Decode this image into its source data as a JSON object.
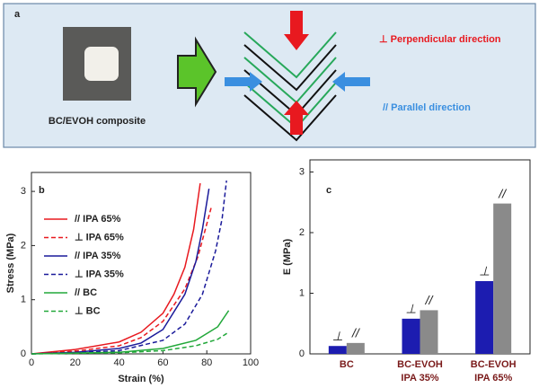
{
  "panel_a": {
    "label": "a",
    "caption": "BC/EVOH composite",
    "perpendicular": "⊥ Perpendicular direction",
    "parallel": "// Parallel direction"
  },
  "chart_data": [
    {
      "type": "line",
      "panel_label": "b",
      "x_label": "Strain (%)",
      "y_label": "Stress (MPa)",
      "xlim": [
        0,
        100
      ],
      "xticks": [
        0,
        20,
        40,
        60,
        80,
        100
      ],
      "ylim": [
        0,
        3.35
      ],
      "yticks": [
        0,
        1,
        2,
        3
      ],
      "series": [
        {
          "name": "// IPA 65%",
          "color": "#e8191f",
          "dashed": false,
          "x": [
            0,
            20,
            40,
            50,
            60,
            65,
            70,
            74,
            77
          ],
          "values": [
            0,
            0.08,
            0.22,
            0.4,
            0.75,
            1.1,
            1.6,
            2.3,
            3.15
          ]
        },
        {
          "name": "⊥ IPA 65%",
          "color": "#e8191f",
          "dashed": true,
          "x": [
            0,
            20,
            40,
            50,
            60,
            70,
            76,
            82
          ],
          "values": [
            0,
            0.05,
            0.15,
            0.3,
            0.6,
            1.2,
            1.8,
            2.7
          ]
        },
        {
          "name": "// IPA 35%",
          "color": "#1a1a9a",
          "dashed": false,
          "x": [
            0,
            20,
            40,
            50,
            60,
            70,
            75,
            78,
            81
          ],
          "values": [
            0,
            0.03,
            0.1,
            0.2,
            0.45,
            1.1,
            1.7,
            2.3,
            3.05
          ]
        },
        {
          "name": "⊥ IPA 35%",
          "color": "#1a1a9a",
          "dashed": true,
          "x": [
            0,
            20,
            40,
            60,
            70,
            78,
            84,
            87,
            89
          ],
          "values": [
            0,
            0.02,
            0.06,
            0.25,
            0.55,
            1.1,
            1.9,
            2.5,
            3.2
          ]
        },
        {
          "name": "// BC",
          "color": "#22a83a",
          "dashed": false,
          "x": [
            0,
            40,
            60,
            75,
            85,
            90
          ],
          "values": [
            0,
            0.03,
            0.1,
            0.25,
            0.5,
            0.8
          ]
        },
        {
          "name": "⊥ BC",
          "color": "#22a83a",
          "dashed": true,
          "x": [
            0,
            40,
            60,
            75,
            85,
            90
          ],
          "values": [
            0,
            0.02,
            0.06,
            0.15,
            0.27,
            0.4
          ]
        }
      ]
    },
    {
      "type": "bar",
      "panel_label": "c",
      "y_label": "E (MPa)",
      "categories": [
        [
          "BC"
        ],
        [
          "BC-EVOH",
          "IPA 35%"
        ],
        [
          "BC-EVOH",
          "IPA 65%"
        ]
      ],
      "ylim": [
        0,
        3.2
      ],
      "yticks": [
        0,
        1,
        2,
        3
      ],
      "series": [
        {
          "name": "⊥",
          "color": "#1c1cb0",
          "values": [
            0.13,
            0.58,
            1.2
          ]
        },
        {
          "name": "//",
          "color": "#8a8a8a",
          "values": [
            0.18,
            0.72,
            2.48
          ]
        }
      ]
    }
  ]
}
